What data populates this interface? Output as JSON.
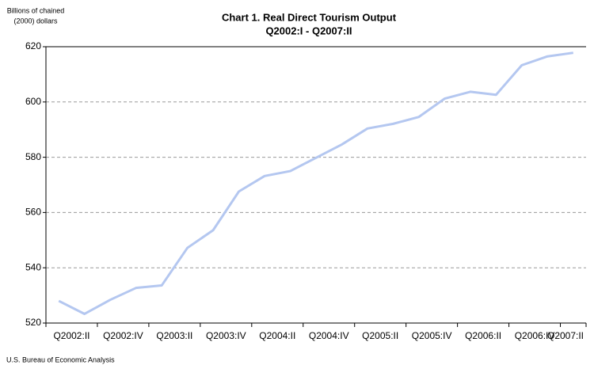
{
  "chart_data": {
    "type": "line",
    "title": "Chart 1. Real Direct Tourism Output",
    "subtitle": "Q2002:I - Q2007:II",
    "ylabel": [
      "Billions of chained",
      "(2000) dollars"
    ],
    "source": "U.S. Bureau of Economic Analysis",
    "categories": [
      "Q2002:II",
      null,
      "Q2002:IV",
      null,
      "Q2003:II",
      null,
      "Q2003:IV",
      null,
      "Q2004:II",
      null,
      "Q2004:IV",
      null,
      "Q2005:II",
      null,
      "Q2005:IV",
      null,
      "Q2006:II",
      null,
      "Q2006:IV",
      null,
      "Q2007:II"
    ],
    "series": [
      {
        "name": "Real Direct Tourism Output",
        "color": "#b4c7f0",
        "values": [
          528.0,
          523.3,
          528.4,
          532.7,
          533.6,
          547.2,
          553.6,
          567.6,
          573.2,
          575.0,
          579.8,
          584.6,
          590.4,
          592.1,
          594.6,
          601.2,
          603.7,
          602.6,
          613.3,
          616.5,
          617.8
        ]
      }
    ],
    "ylim": [
      520,
      620
    ],
    "yticks": [
      520,
      540,
      560,
      580,
      600,
      620
    ],
    "grid": true
  }
}
